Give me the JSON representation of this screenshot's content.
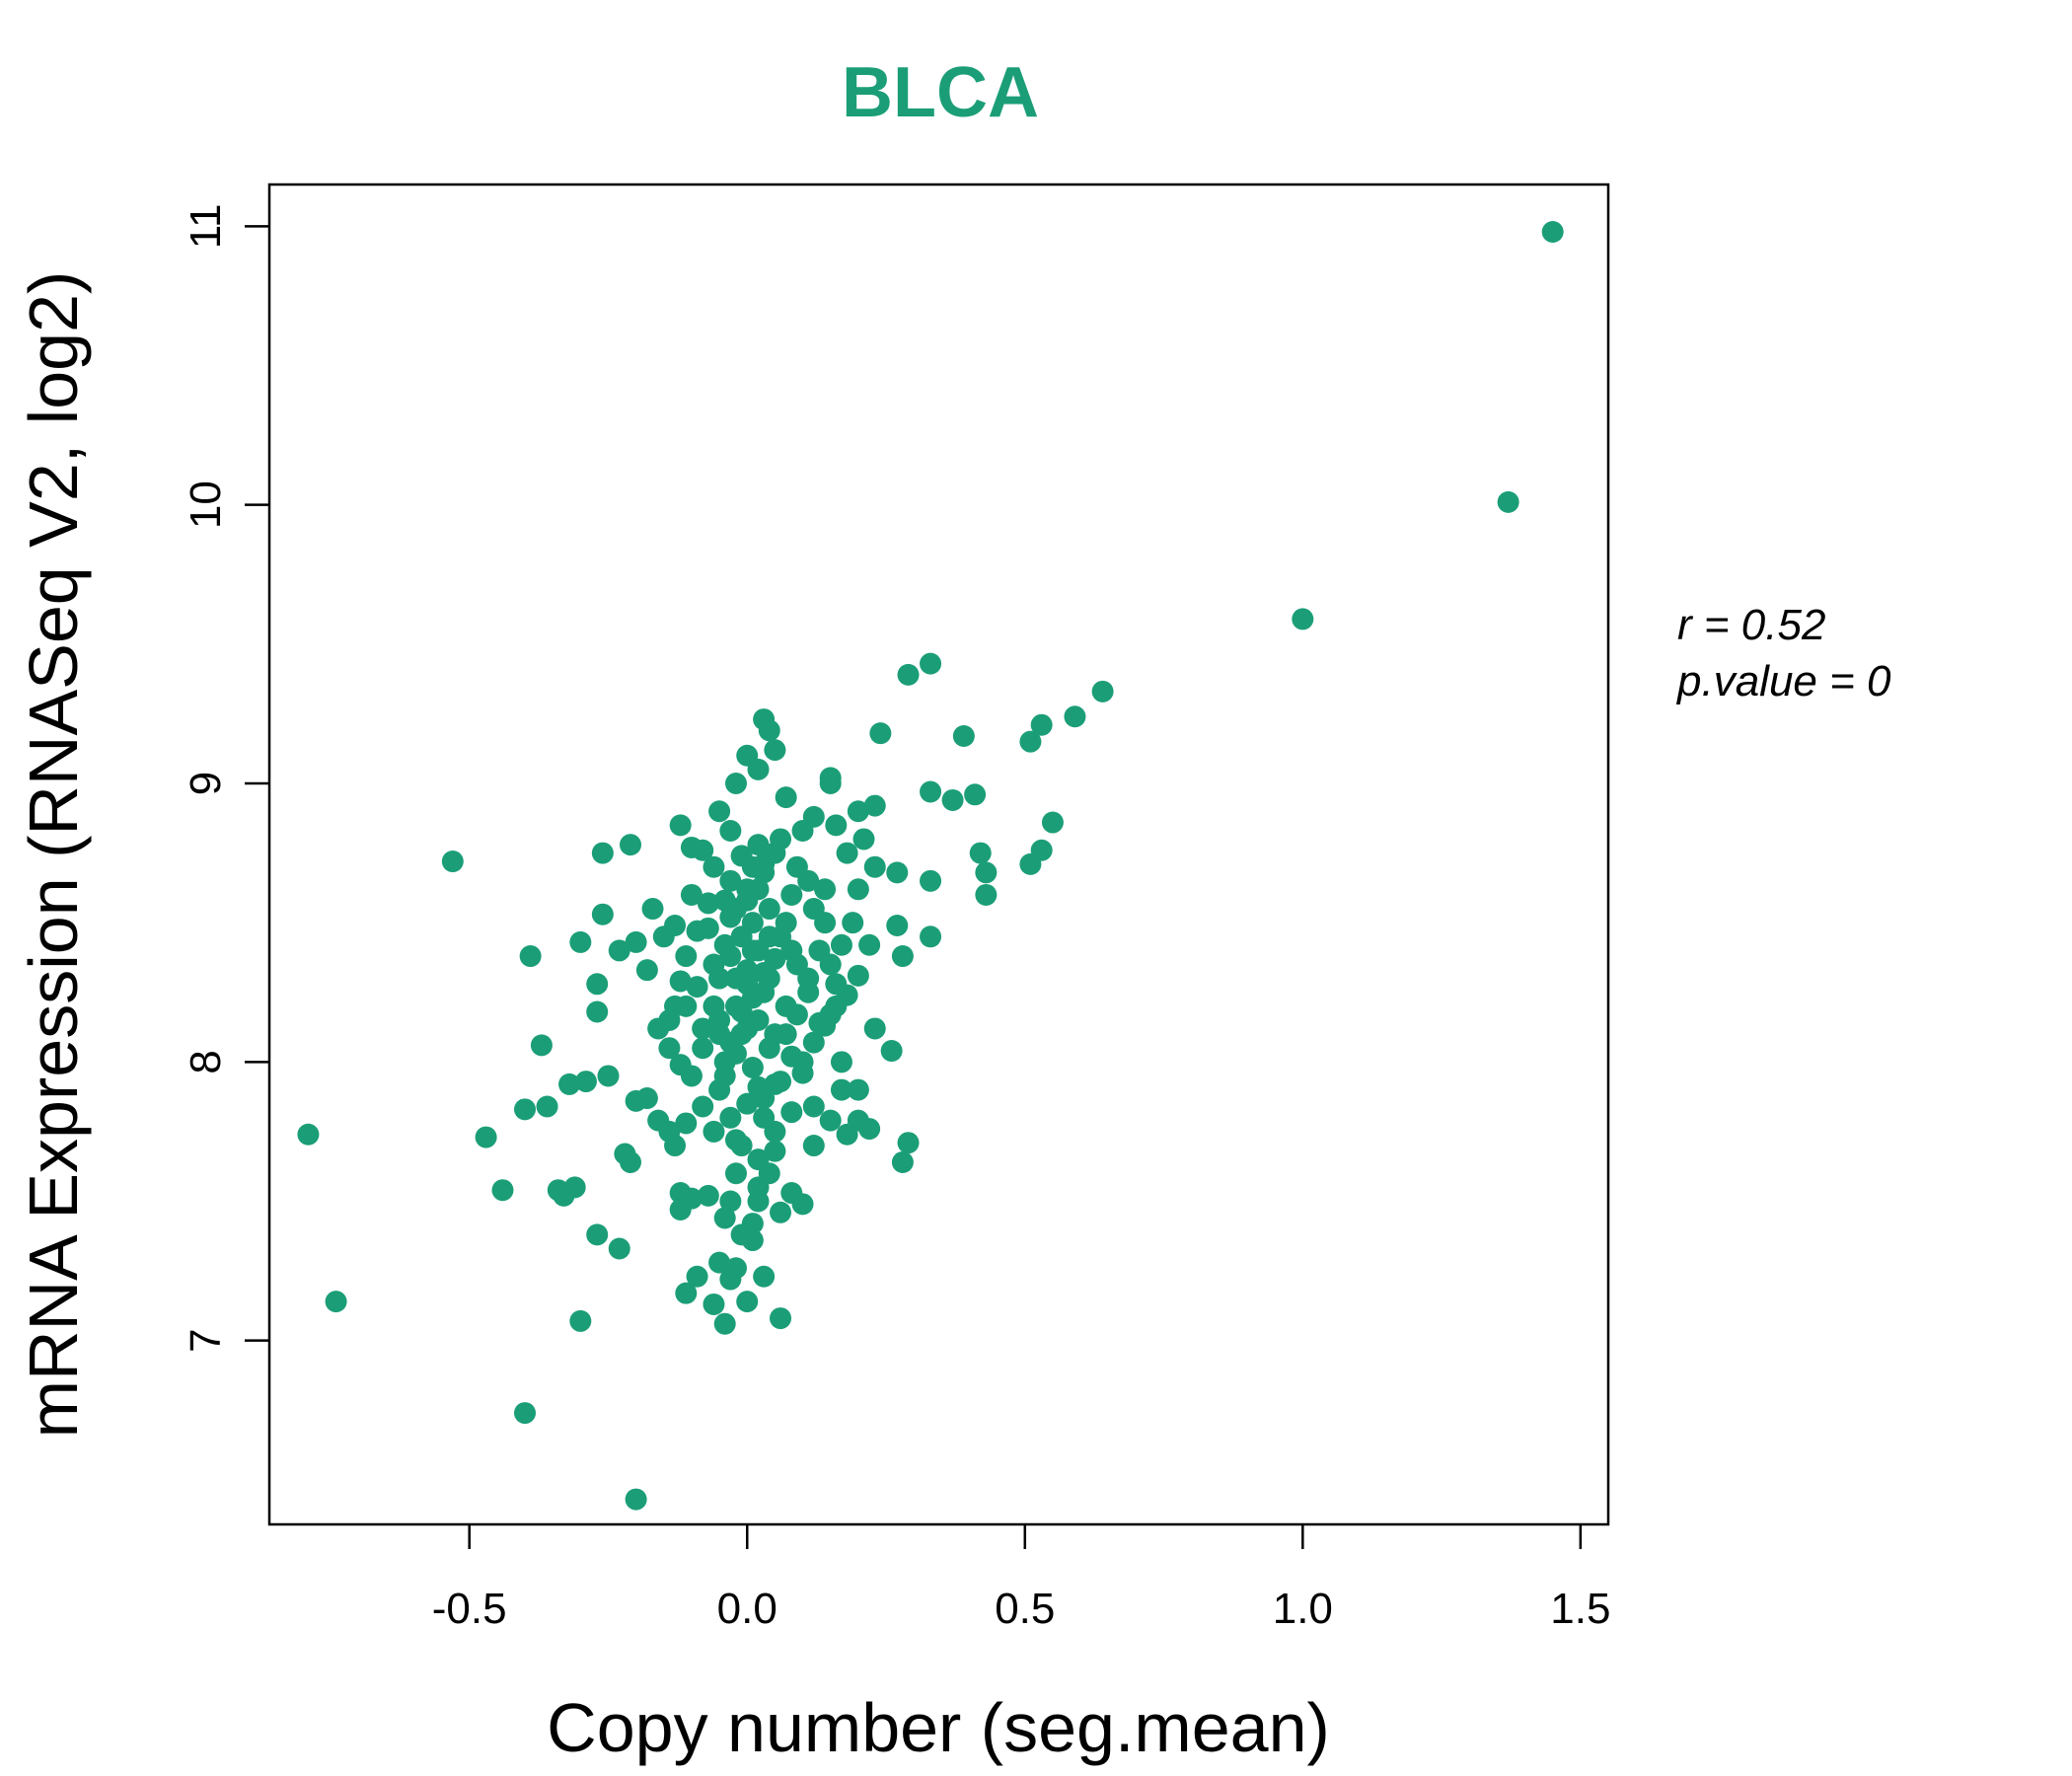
{
  "chart_data": {
    "type": "scatter",
    "title": "BLCA",
    "xlabel": "Copy number (seg.mean)",
    "ylabel": "mRNA Expression (RNASeq V2, log2)",
    "xlim": [
      -0.86,
      1.55
    ],
    "ylim": [
      6.34,
      11.15
    ],
    "x_ticks": [
      -0.5,
      0.0,
      0.5,
      1.0,
      1.5
    ],
    "x_tick_labels": [
      "-0.5",
      "0.0",
      "0.5",
      "1.0",
      "1.5"
    ],
    "y_ticks": [
      7,
      8,
      9,
      10,
      11
    ],
    "y_tick_labels": [
      "7",
      "8",
      "9",
      "10",
      "11"
    ],
    "grid": false,
    "color": "#1b9e77",
    "annotations": [
      "r = 0.52",
      "p.value = 0"
    ],
    "points": [
      [
        1.45,
        10.98
      ],
      [
        1.37,
        10.01
      ],
      [
        1.0,
        9.59
      ],
      [
        0.64,
        9.33
      ],
      [
        0.59,
        9.24
      ],
      [
        0.53,
        9.21
      ],
      [
        0.51,
        9.15
      ],
      [
        0.33,
        9.43
      ],
      [
        0.29,
        9.39
      ],
      [
        0.24,
        9.18
      ],
      [
        0.39,
        9.17
      ],
      [
        0.33,
        8.97
      ],
      [
        0.37,
        8.94
      ],
      [
        0.41,
        8.96
      ],
      [
        0.55,
        8.86
      ],
      [
        0.53,
        8.76
      ],
      [
        0.51,
        8.71
      ],
      [
        0.42,
        8.75
      ],
      [
        0.43,
        8.68
      ],
      [
        0.43,
        8.6
      ],
      [
        0.33,
        8.65
      ],
      [
        0.27,
        8.68
      ],
      [
        0.33,
        8.45
      ],
      [
        0.27,
        8.49
      ],
      [
        0.28,
        8.38
      ],
      [
        0.23,
        8.12
      ],
      [
        0.26,
        8.04
      ],
      [
        0.29,
        7.71
      ],
      [
        0.28,
        7.64
      ],
      [
        -0.53,
        8.72
      ],
      [
        -0.79,
        7.74
      ],
      [
        -0.74,
        7.14
      ],
      [
        -0.47,
        7.73
      ],
      [
        -0.44,
        7.54
      ],
      [
        -0.4,
        6.74
      ],
      [
        -0.2,
        6.43
      ],
      [
        -0.3,
        7.07
      ],
      [
        -0.27,
        7.38
      ],
      [
        -0.23,
        7.33
      ],
      [
        -0.39,
        8.38
      ],
      [
        -0.37,
        8.06
      ],
      [
        -0.4,
        7.83
      ],
      [
        -0.36,
        7.84
      ],
      [
        -0.33,
        7.52
      ],
      [
        -0.34,
        7.54
      ],
      [
        -0.31,
        7.55
      ],
      [
        -0.32,
        7.92
      ],
      [
        -0.29,
        7.93
      ],
      [
        -0.25,
        7.95
      ],
      [
        -0.27,
        8.18
      ],
      [
        -0.27,
        8.28
      ],
      [
        -0.3,
        8.43
      ],
      [
        -0.26,
        8.53
      ],
      [
        -0.26,
        8.75
      ],
      [
        -0.21,
        8.78
      ],
      [
        -0.23,
        8.4
      ],
      [
        -0.2,
        8.43
      ],
      [
        -0.17,
        8.55
      ],
      [
        -0.18,
        8.33
      ],
      [
        -0.13,
        8.2
      ],
      [
        -0.12,
        8.29
      ],
      [
        -0.14,
        8.05
      ],
      [
        -0.18,
        7.87
      ],
      [
        -0.16,
        7.79
      ],
      [
        -0.2,
        7.86
      ],
      [
        -0.22,
        7.67
      ],
      [
        -0.21,
        7.64
      ],
      [
        -0.14,
        7.75
      ],
      [
        -0.13,
        7.7
      ],
      [
        -0.11,
        7.78
      ],
      [
        -0.12,
        7.53
      ],
      [
        -0.1,
        7.51
      ],
      [
        -0.07,
        7.52
      ],
      [
        -0.12,
        7.47
      ],
      [
        -0.09,
        7.23
      ],
      [
        -0.11,
        7.17
      ],
      [
        -0.05,
        7.28
      ],
      [
        -0.04,
        7.06
      ],
      [
        -0.06,
        7.13
      ],
      [
        -0.03,
        7.22
      ],
      [
        -0.02,
        7.26
      ],
      [
        0.0,
        7.14
      ],
      [
        0.03,
        7.23
      ],
      [
        0.01,
        7.36
      ],
      [
        0.06,
        7.08
      ],
      [
        0.02,
        7.5
      ],
      [
        0.04,
        7.6
      ],
      [
        0.06,
        7.46
      ],
      [
        0.08,
        7.53
      ],
      [
        0.1,
        7.49
      ],
      [
        0.12,
        7.7
      ],
      [
        0.15,
        7.79
      ],
      [
        0.18,
        7.74
      ],
      [
        0.2,
        7.79
      ],
      [
        0.17,
        7.9
      ],
      [
        0.2,
        7.9
      ],
      [
        0.17,
        8.0
      ],
      [
        0.22,
        7.76
      ],
      [
        0.12,
        7.84
      ],
      [
        0.1,
        8.0
      ],
      [
        0.14,
        8.13
      ],
      [
        0.16,
        8.2
      ],
      [
        0.18,
        8.24
      ],
      [
        0.2,
        8.31
      ],
      [
        0.22,
        8.42
      ],
      [
        0.19,
        8.5
      ],
      [
        0.2,
        8.62
      ],
      [
        0.23,
        8.7
      ],
      [
        0.21,
        8.8
      ],
      [
        0.18,
        8.75
      ],
      [
        0.16,
        8.85
      ],
      [
        0.2,
        8.9
      ],
      [
        0.23,
        8.92
      ],
      [
        0.15,
        9.0
      ],
      [
        0.15,
        9.02
      ],
      [
        0.12,
        8.88
      ],
      [
        0.1,
        8.83
      ],
      [
        0.07,
        8.95
      ],
      [
        0.05,
        8.75
      ],
      [
        0.03,
        9.23
      ],
      [
        0.04,
        9.19
      ],
      [
        0.05,
        9.12
      ],
      [
        0.0,
        9.1
      ],
      [
        0.02,
        9.05
      ],
      [
        -0.02,
        9.0
      ],
      [
        -0.05,
        8.9
      ],
      [
        -0.03,
        8.83
      ],
      [
        -0.12,
        8.85
      ],
      [
        -0.1,
        8.77
      ],
      [
        -0.08,
        8.76
      ],
      [
        -0.06,
        8.7
      ],
      [
        -0.03,
        8.65
      ],
      [
        -0.1,
        8.6
      ],
      [
        -0.07,
        8.57
      ],
      [
        -0.03,
        8.52
      ],
      [
        -0.09,
        8.47
      ],
      [
        -0.13,
        8.49
      ],
      [
        -0.15,
        8.45
      ],
      [
        -0.11,
        8.38
      ],
      [
        -0.06,
        8.35
      ],
      [
        -0.02,
        8.3
      ],
      [
        -0.09,
        8.27
      ],
      [
        -0.11,
        8.2
      ],
      [
        -0.16,
        8.12
      ],
      [
        -0.05,
        8.15
      ],
      [
        -0.01,
        8.1
      ],
      [
        -0.08,
        8.05
      ],
      [
        -0.12,
        7.99
      ],
      [
        -0.1,
        7.95
      ],
      [
        -0.05,
        7.9
      ],
      [
        -0.08,
        7.84
      ],
      [
        -0.03,
        7.8
      ],
      [
        -0.06,
        7.75
      ],
      [
        -0.01,
        7.7
      ],
      [
        0.02,
        7.65
      ],
      [
        -0.02,
        7.6
      ],
      [
        0.05,
        7.75
      ],
      [
        0.08,
        7.82
      ],
      [
        0.03,
        7.87
      ],
      [
        0.06,
        7.93
      ],
      [
        0.1,
        7.96
      ],
      [
        0.08,
        8.02
      ],
      [
        0.12,
        8.07
      ],
      [
        0.05,
        8.1
      ],
      [
        0.02,
        8.15
      ],
      [
        0.07,
        8.2
      ],
      [
        0.11,
        8.25
      ],
      [
        0.04,
        8.3
      ],
      [
        0.09,
        8.35
      ],
      [
        0.13,
        8.4
      ],
      [
        0.06,
        8.45
      ],
      [
        0.01,
        8.4
      ],
      [
        0.0,
        8.33
      ],
      [
        -0.02,
        8.2
      ],
      [
        0.03,
        8.25
      ],
      [
        0.01,
        8.5
      ],
      [
        0.04,
        8.55
      ],
      [
        0.08,
        8.6
      ],
      [
        0.11,
        8.65
      ],
      [
        0.14,
        8.62
      ],
      [
        0.09,
        8.7
      ],
      [
        0.03,
        8.68
      ],
      [
        0.0,
        8.62
      ],
      [
        -0.04,
        8.58
      ],
      [
        0.02,
        8.78
      ],
      [
        0.06,
        8.8
      ],
      [
        0.0,
        8.12
      ],
      [
        -0.02,
        8.03
      ],
      [
        0.01,
        7.98
      ],
      [
        -0.04,
        7.95
      ],
      [
        0.02,
        7.91
      ],
      [
        -0.03,
        8.07
      ],
      [
        0.04,
        8.05
      ],
      [
        -0.01,
        8.18
      ],
      [
        0.01,
        8.23
      ],
      [
        0.0,
        8.28
      ],
      [
        -0.03,
        8.38
      ],
      [
        0.02,
        8.4
      ],
      [
        0.04,
        8.45
      ],
      [
        -0.01,
        8.45
      ],
      [
        0.05,
        8.37
      ],
      [
        0.03,
        8.32
      ],
      [
        -0.05,
        8.3
      ],
      [
        -0.06,
        8.2
      ],
      [
        -0.05,
        8.1
      ],
      [
        -0.04,
        8.0
      ],
      [
        0.0,
        7.85
      ],
      [
        0.03,
        7.8
      ],
      [
        -0.02,
        7.72
      ],
      [
        0.05,
        7.68
      ],
      [
        0.02,
        7.55
      ],
      [
        -0.03,
        7.5
      ],
      [
        -0.04,
        7.44
      ],
      [
        -0.01,
        7.38
      ],
      [
        0.01,
        7.42
      ],
      [
        0.05,
        7.92
      ],
      [
        0.07,
        8.1
      ],
      [
        0.09,
        8.17
      ],
      [
        0.13,
        8.14
      ],
      [
        0.15,
        8.17
      ],
      [
        0.11,
        8.3
      ],
      [
        0.15,
        8.35
      ],
      [
        0.17,
        8.42
      ],
      [
        0.14,
        8.5
      ],
      [
        0.12,
        8.55
      ],
      [
        0.07,
        8.5
      ],
      [
        0.08,
        8.4
      ],
      [
        0.16,
        8.28
      ],
      [
        -0.14,
        8.15
      ],
      [
        -0.08,
        8.12
      ],
      [
        -0.04,
        8.42
      ],
      [
        -0.07,
        8.48
      ],
      [
        -0.02,
        8.55
      ],
      [
        0.0,
        8.58
      ],
      [
        0.02,
        8.62
      ],
      [
        0.01,
        8.7
      ],
      [
        -0.01,
        8.74
      ],
      [
        0.03,
        8.71
      ]
    ]
  }
}
